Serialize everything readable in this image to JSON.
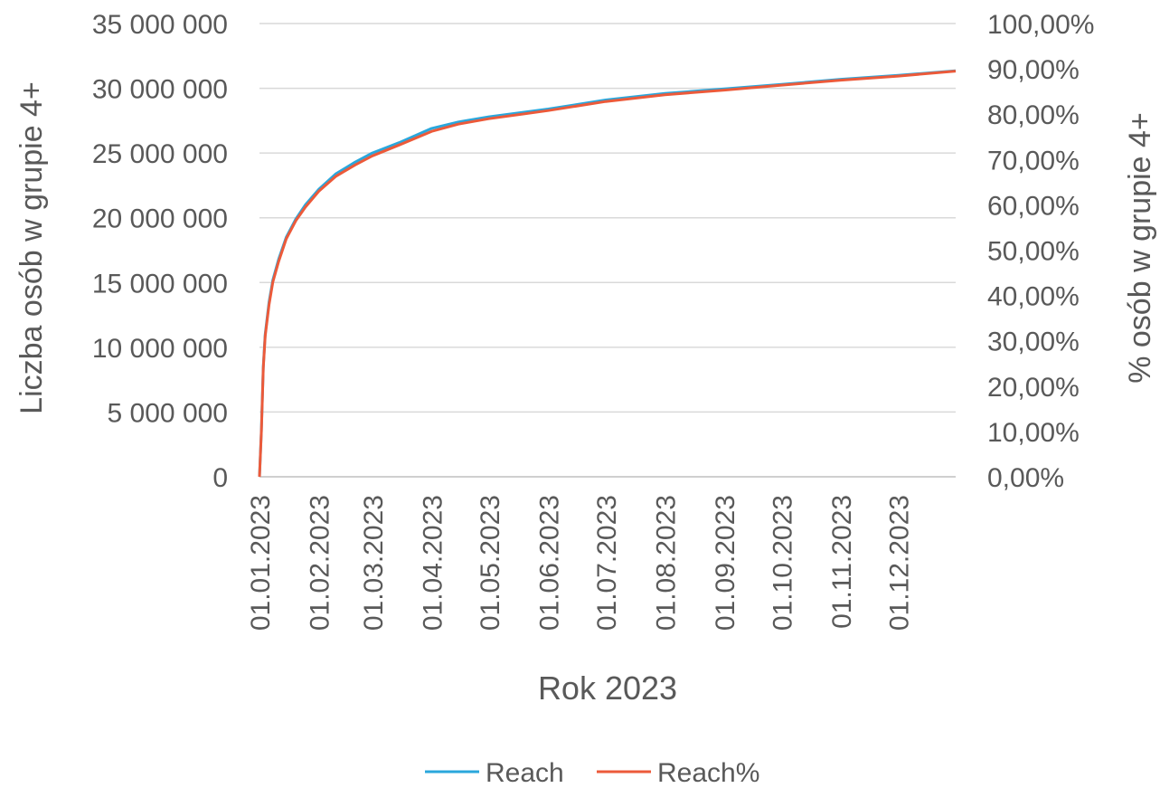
{
  "chart_data": {
    "type": "line",
    "title": "",
    "xlabel": "Rok 2023",
    "ylabel": "Liczba osób w grupie 4+",
    "y2label": "% osób w grupie 4+",
    "x_ticks": [
      "01.01.2023",
      "01.02.2023",
      "01.03.2023",
      "01.04.2023",
      "01.05.2023",
      "01.06.2023",
      "01.07.2023",
      "01.08.2023",
      "01.09.2023",
      "01.10.2023",
      "01.11.2023",
      "01.12.2023"
    ],
    "y_ticks": [
      "0",
      "5 000 000",
      "10 000 000",
      "15 000 000",
      "20 000 000",
      "25 000 000",
      "30 000 000",
      "35 000 000"
    ],
    "y2_ticks": [
      "0,00%",
      "10,00%",
      "20,00%",
      "30,00%",
      "40,00%",
      "50,00%",
      "60,00%",
      "70,00%",
      "80,00%",
      "90,00%",
      "100,00%"
    ],
    "ylim": [
      0,
      35000000
    ],
    "y2lim": [
      0,
      1.0
    ],
    "xlim": [
      "01.01.2023",
      "31.12.2023"
    ],
    "grid": true,
    "legend_position": "bottom",
    "series": [
      {
        "name": "Reach",
        "axis": "left",
        "color": "#2aa7dc",
        "points": [
          [
            "01.01.2023",
            0
          ],
          [
            "02.01.2023",
            3600000
          ],
          [
            "03.01.2023",
            8500000
          ],
          [
            "04.01.2023",
            11000000
          ],
          [
            "06.01.2023",
            13500000
          ],
          [
            "08.01.2023",
            15200000
          ],
          [
            "11.01.2023",
            16800000
          ],
          [
            "15.01.2023",
            18500000
          ],
          [
            "20.01.2023",
            19900000
          ],
          [
            "25.01.2023",
            21000000
          ],
          [
            "01.02.2023",
            22200000
          ],
          [
            "10.02.2023",
            23400000
          ],
          [
            "20.02.2023",
            24300000
          ],
          [
            "01.03.2023",
            25000000
          ],
          [
            "15.03.2023",
            25800000
          ],
          [
            "01.04.2023",
            26900000
          ],
          [
            "15.04.2023",
            27400000
          ],
          [
            "01.05.2023",
            27800000
          ],
          [
            "01.06.2023",
            28400000
          ],
          [
            "01.07.2023",
            29100000
          ],
          [
            "01.08.2023",
            29600000
          ],
          [
            "01.09.2023",
            29950000
          ],
          [
            "01.10.2023",
            30300000
          ],
          [
            "01.11.2023",
            30700000
          ],
          [
            "01.12.2023",
            31000000
          ],
          [
            "31.12.2023",
            31350000
          ]
        ]
      },
      {
        "name": "Reach%",
        "axis": "right",
        "color": "#ec5a3a",
        "points": [
          [
            "01.01.2023",
            0
          ],
          [
            "02.01.2023",
            0.1
          ],
          [
            "03.01.2023",
            0.24
          ],
          [
            "04.01.2023",
            0.31
          ],
          [
            "06.01.2023",
            0.38
          ],
          [
            "08.01.2023",
            0.43
          ],
          [
            "11.01.2023",
            0.475
          ],
          [
            "15.01.2023",
            0.525
          ],
          [
            "20.01.2023",
            0.565
          ],
          [
            "25.01.2023",
            0.595
          ],
          [
            "01.02.2023",
            0.63
          ],
          [
            "10.02.2023",
            0.663
          ],
          [
            "20.02.2023",
            0.688
          ],
          [
            "01.03.2023",
            0.708
          ],
          [
            "15.03.2023",
            0.732
          ],
          [
            "01.04.2023",
            0.762
          ],
          [
            "15.04.2023",
            0.778
          ],
          [
            "01.05.2023",
            0.79
          ],
          [
            "01.06.2023",
            0.808
          ],
          [
            "01.07.2023",
            0.828
          ],
          [
            "01.08.2023",
            0.843
          ],
          [
            "01.09.2023",
            0.853
          ],
          [
            "01.10.2023",
            0.864
          ],
          [
            "01.11.2023",
            0.875
          ],
          [
            "01.12.2023",
            0.884
          ],
          [
            "31.12.2023",
            0.895
          ]
        ]
      }
    ]
  }
}
